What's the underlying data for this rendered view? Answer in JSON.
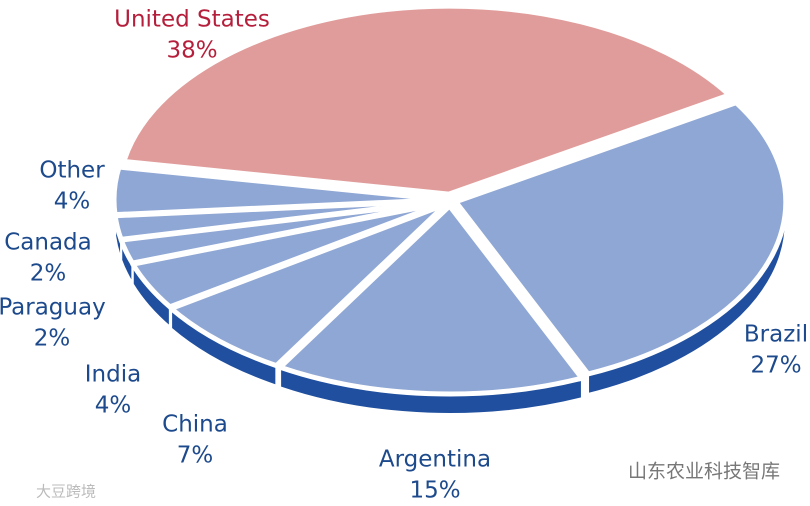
{
  "chart_data": {
    "type": "pie",
    "categories": [
      "United States",
      "Brazil",
      "Argentina",
      "China",
      "India",
      "Paraguay",
      "Canada",
      "Other"
    ],
    "values": [
      38,
      27,
      15,
      7,
      4,
      2,
      2,
      4
    ],
    "value_labels": [
      "38%",
      "27%",
      "15%",
      "7%",
      "4%",
      "2%",
      "2%",
      "4%"
    ],
    "colors": [
      "#e09c9a",
      "#8fa7d4",
      "#8fa7d4",
      "#8fa7d4",
      "#8fa7d4",
      "#8fa7d4",
      "#8fa7d4",
      "#8fa7d4"
    ],
    "label_colors": [
      "#b51f3c",
      "#1d4a8c",
      "#1d4a8c",
      "#1d4a8c",
      "#1d4a8c",
      "#1d4a8c",
      "#1d4a8c",
      "#1d4a8c"
    ],
    "side_color": "#1f4f9e"
  },
  "watermarks": [
    "山东农业科技智库",
    "大豆跨境"
  ]
}
